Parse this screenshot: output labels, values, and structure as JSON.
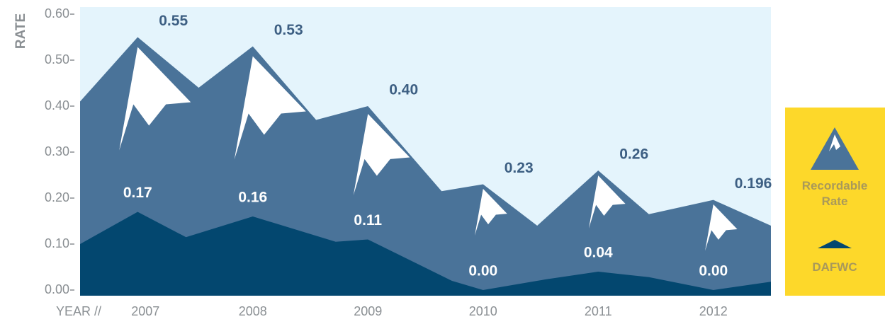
{
  "chart_data": {
    "type": "area",
    "ylabel": "RATE",
    "xlabel": "YEAR //",
    "xlim": [
      2006.5,
      2012.5
    ],
    "xticks": [
      2007,
      2008,
      2009,
      2010,
      2011,
      2012
    ],
    "ylim": [
      0,
      0.6
    ],
    "yticks": [
      {
        "value": 0,
        "label": "0.00"
      },
      {
        "value": 0.1,
        "label": "0.10"
      },
      {
        "value": 0.2,
        "label": "0.20"
      },
      {
        "value": 0.3,
        "label": "0.30"
      },
      {
        "value": 0.4,
        "label": "0.40"
      },
      {
        "value": 0.5,
        "label": "0.50"
      },
      {
        "value": 0.6,
        "label": "0.60"
      }
    ],
    "background": "#e4f4fc",
    "legend": "right",
    "series": [
      {
        "name": "Recordable Rate",
        "color": "#4a7399",
        "x": [
          2006.5,
          2007,
          2007.53,
          2008,
          2008.55,
          2009,
          2009.64,
          2010,
          2010.47,
          2011,
          2011.44,
          2012,
          2012.5
        ],
        "values": [
          0.41,
          0.55,
          0.44,
          0.53,
          0.37,
          0.4,
          0.215,
          0.23,
          0.14,
          0.26,
          0.165,
          0.196,
          0.14
        ],
        "value_labels": [
          null,
          "0.55",
          null,
          "0.53",
          null,
          "0.40",
          null,
          "0.23",
          null,
          "0.26",
          null,
          "0.196",
          null
        ]
      },
      {
        "name": "DAFWC",
        "color": "#03476f",
        "x": [
          2006.5,
          2007,
          2007.42,
          2008,
          2008.72,
          2009,
          2009.73,
          2010,
          2010.54,
          2011,
          2011.44,
          2012,
          2012.5
        ],
        "values": [
          0.1,
          0.17,
          0.115,
          0.16,
          0.105,
          0.11,
          0.02,
          0.0,
          0.023,
          0.04,
          0.028,
          0.0,
          0.018
        ],
        "value_labels": [
          null,
          "0.17",
          null,
          "0.16",
          null,
          "0.11",
          null,
          "0.00",
          null,
          "0.04",
          null,
          "0.00",
          null
        ]
      }
    ]
  }
}
